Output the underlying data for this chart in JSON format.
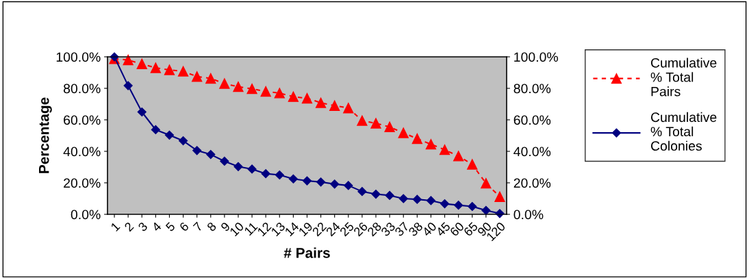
{
  "chart_data": {
    "type": "line",
    "xlabel": "# Pairs",
    "ylabel": "Percentage",
    "categories": [
      "1",
      "2",
      "3",
      "4",
      "5",
      "6",
      "7",
      "8",
      "9",
      "10",
      "11",
      "12",
      "13",
      "14",
      "19",
      "22",
      "24",
      "25",
      "26",
      "28",
      "33",
      "37",
      "38",
      "40",
      "45",
      "60",
      "65",
      "90",
      "120"
    ],
    "series": [
      {
        "name": "Cumulative\n% Total\nPairs",
        "color": "#ff0000",
        "marker": "triangle",
        "line_style": "dashed",
        "values": [
          98.8,
          98,
          95.5,
          93,
          91.7,
          90.8,
          87.5,
          86.3,
          83,
          81,
          79.7,
          78,
          77,
          74.7,
          73.7,
          70.8,
          69,
          67.5,
          59.5,
          57.8,
          55.5,
          51.7,
          48,
          44.5,
          41,
          37,
          31.7,
          19.7,
          11.2
        ]
      },
      {
        "name": "Cumulative\n% Total\nColonies",
        "color": "#000080",
        "marker": "diamond",
        "line_style": "solid",
        "values": [
          100,
          81.7,
          65,
          53.7,
          50.3,
          46.7,
          40.5,
          38,
          33.7,
          30.3,
          28.7,
          25.8,
          25,
          22.5,
          21.3,
          20.5,
          19.2,
          18.3,
          14.5,
          12.8,
          12,
          10,
          9.5,
          8.7,
          6.7,
          5.8,
          5,
          2.5,
          0.5
        ]
      }
    ],
    "ylim": [
      0,
      100
    ],
    "yticks": [
      {
        "value": 0,
        "label": "0.0%"
      },
      {
        "value": 20,
        "label": "20.0%"
      },
      {
        "value": 40,
        "label": "40.0%"
      },
      {
        "value": 60,
        "label": "60.0%"
      },
      {
        "value": 80,
        "label": "80.0%"
      },
      {
        "value": 100,
        "label": "100.0%"
      }
    ],
    "y2lim": [
      0,
      100
    ],
    "y2ticks": [
      {
        "value": 0,
        "label": "0.0%"
      },
      {
        "value": 20,
        "label": "20.0%"
      },
      {
        "value": 40,
        "label": "40.0%"
      },
      {
        "value": 60,
        "label": "60.0%"
      },
      {
        "value": 80,
        "label": "80.0%"
      },
      {
        "value": 100,
        "label": "100.0%"
      }
    ],
    "grid": false,
    "legend": "right"
  }
}
